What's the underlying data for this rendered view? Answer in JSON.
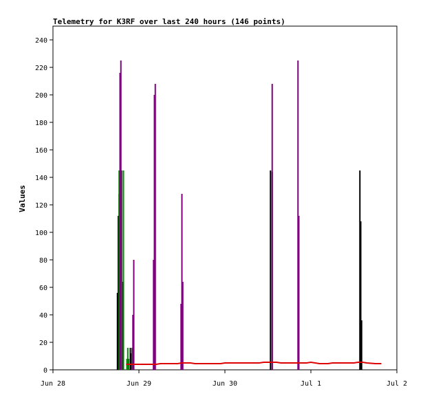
{
  "chart_data": {
    "type": "line",
    "title": "Telemetry for K3RF over last 240 hours (146 points)",
    "xlabel": "",
    "ylabel": "Values",
    "x_ticks": [
      "Jun 28",
      "Jun 29",
      "Jun 30",
      "Jul 1",
      "Jul 2"
    ],
    "y_ticks": [
      "0",
      "20",
      "40",
      "60",
      "80",
      "100",
      "120",
      "140",
      "160",
      "180",
      "200",
      "220",
      "240"
    ],
    "xlim": [
      0,
      4
    ],
    "ylim": [
      0,
      250
    ],
    "grid": false,
    "legend": "none",
    "series": [
      {
        "color": "#000000",
        "style": "spikes",
        "points": [
          [
            0.75,
            56
          ],
          [
            0.76,
            112
          ],
          [
            0.77,
            128
          ],
          [
            0.78,
            145
          ],
          [
            0.79,
            144
          ],
          [
            0.8,
            145
          ],
          [
            0.81,
            64
          ],
          [
            0.82,
            24
          ],
          [
            0.87,
            8
          ],
          [
            0.9,
            16
          ],
          [
            0.91,
            12
          ],
          [
            1.17,
            4
          ],
          [
            2.53,
            145
          ],
          [
            2.55,
            144
          ],
          [
            3.57,
            145
          ],
          [
            3.58,
            108
          ],
          [
            3.59,
            36
          ]
        ]
      },
      {
        "color": "#008800",
        "style": "spikes",
        "points": [
          [
            0.77,
            145
          ],
          [
            0.8,
            145
          ],
          [
            0.82,
            145
          ],
          [
            0.86,
            8
          ],
          [
            0.87,
            16
          ],
          [
            0.88,
            8
          ],
          [
            0.92,
            16
          ]
        ]
      },
      {
        "color": "#800080",
        "style": "spikes",
        "points": [
          [
            0.78,
            216
          ],
          [
            0.79,
            225
          ],
          [
            0.93,
            40
          ],
          [
            0.94,
            80
          ],
          [
            1.17,
            80
          ],
          [
            1.18,
            200
          ],
          [
            1.19,
            208
          ],
          [
            1.49,
            48
          ],
          [
            1.5,
            128
          ],
          [
            1.51,
            64
          ],
          [
            2.55,
            208
          ],
          [
            2.85,
            225
          ],
          [
            2.86,
            112
          ]
        ]
      },
      {
        "color": "#dd0000",
        "style": "line",
        "points": [
          [
            0.85,
            4
          ],
          [
            1.2,
            4
          ],
          [
            1.25,
            4.5
          ],
          [
            1.45,
            4.5
          ],
          [
            1.5,
            5
          ],
          [
            1.6,
            5
          ],
          [
            1.65,
            4.5
          ],
          [
            1.95,
            4.5
          ],
          [
            2.0,
            5
          ],
          [
            2.4,
            5
          ],
          [
            2.45,
            5.5
          ],
          [
            2.6,
            5.5
          ],
          [
            2.65,
            5
          ],
          [
            2.95,
            5
          ],
          [
            3.0,
            5.5
          ],
          [
            3.05,
            5
          ],
          [
            3.1,
            4.5
          ],
          [
            3.2,
            4.5
          ],
          [
            3.25,
            5
          ],
          [
            3.5,
            5
          ],
          [
            3.55,
            5.5
          ],
          [
            3.6,
            5.5
          ],
          [
            3.65,
            5
          ],
          [
            3.75,
            4.5
          ],
          [
            3.82,
            4.5
          ]
        ]
      }
    ]
  }
}
